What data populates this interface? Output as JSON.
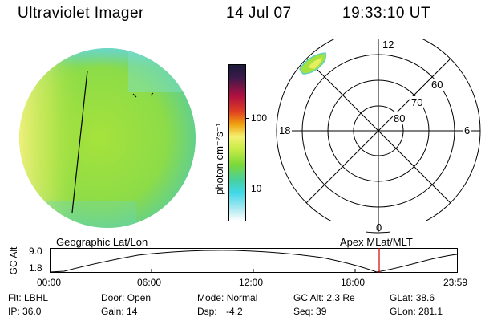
{
  "header": {
    "title": "Ultraviolet Imager",
    "date": "14 Jul 07",
    "time": "19:33:10 UT"
  },
  "colorbar": {
    "label": "photon cm⁻²s⁻¹",
    "ticks": [
      "100",
      "10"
    ]
  },
  "polar_plot": {
    "mlt_labels": {
      "top": "12",
      "left": "18",
      "right": "6",
      "bottom": "0"
    },
    "lat_labels": [
      "60",
      "70",
      "80"
    ]
  },
  "orbit_panel": {
    "left_title": "Geographic Lat/Lon",
    "right_title": "Apex MLat/MLT",
    "y_axis_label": "GC Alt",
    "y_ticks": [
      "9.0",
      "1.8"
    ],
    "time_ticks": [
      "00:00",
      "06:00",
      "12:00",
      "18:00",
      "23:59"
    ]
  },
  "footer": {
    "rows": [
      [
        {
          "key": "Flt:",
          "value": "LBHL"
        },
        {
          "key": "Door:",
          "value": "Open"
        },
        {
          "key": "Mode:",
          "value": "Normal"
        },
        {
          "key": "GC Alt:",
          "value": "2.3 Re"
        },
        {
          "key": "GLat:",
          "value": "38.6"
        }
      ],
      [
        {
          "key": "IP:",
          "value": "36.0"
        },
        {
          "key": "Gain:",
          "value": "14"
        },
        {
          "key": "Dsp:",
          "value": "-4.2"
        },
        {
          "key": "Seq:",
          "value": "39"
        },
        {
          "key": "GLon:",
          "value": "281.1"
        }
      ]
    ]
  },
  "colors": {
    "disk_main": "#9be03a",
    "disk_bright": "#f2f07a",
    "disk_edge": "#5fd0e0",
    "marker_line": "#d40000"
  }
}
